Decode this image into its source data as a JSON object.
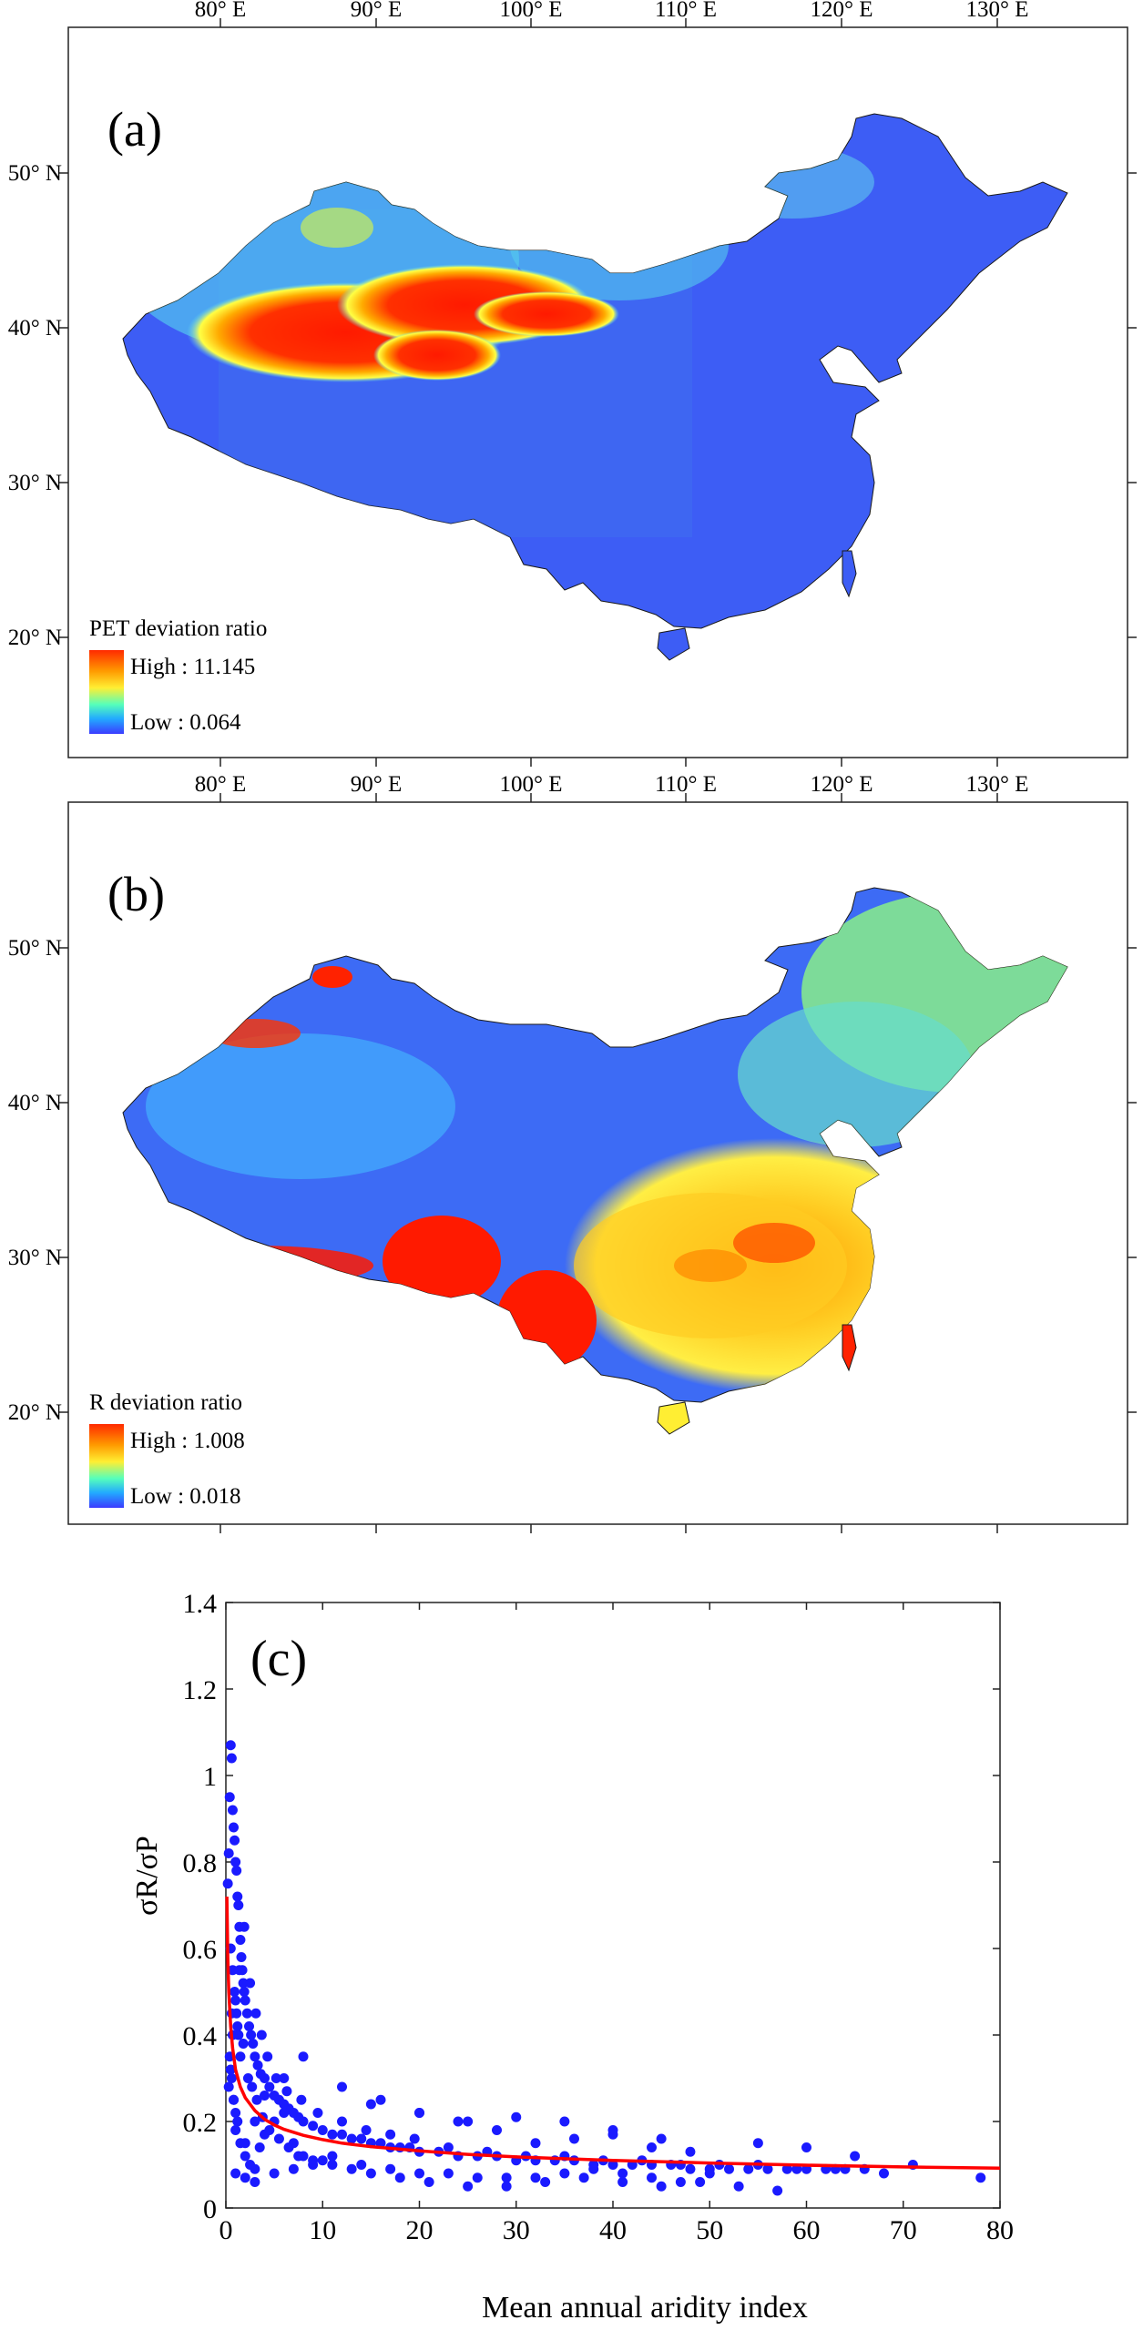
{
  "panels": {
    "a": {
      "label": "(a)",
      "lon_ticks": [
        "80° E",
        "90° E",
        "100° E",
        "110° E",
        "120° E",
        "130° E"
      ],
      "lat_ticks": [
        "50° N",
        "40° N",
        "30° N",
        "20° N"
      ],
      "legend": {
        "title": "PET deviation ratio",
        "high": "High : 11.145",
        "low": "Low : 0.064"
      },
      "colors": {
        "low": "#3b5cff",
        "mid": "#ffee33",
        "high": "#ff1a00"
      }
    },
    "b": {
      "label": "(b)",
      "lon_ticks": [
        "80° E",
        "90° E",
        "100° E",
        "110° E",
        "120° E",
        "130° E"
      ],
      "lat_ticks": [
        "50° N",
        "40° N",
        "30° N",
        "20° N"
      ],
      "legend": {
        "title": "R deviation ratio",
        "high": "High : 1.008",
        "low": "Low : 0.018"
      },
      "colors": {
        "low": "#3b5cff",
        "mid": "#ffee33",
        "high": "#ff1a00"
      }
    }
  },
  "chart_data": {
    "type": "scatter",
    "label": "(c)",
    "xlabel": "Mean annual aridity index",
    "ylabel": "σR/σP",
    "xlim": [
      0,
      80
    ],
    "ylim": [
      0,
      1.4
    ],
    "xticks": [
      0,
      10,
      20,
      30,
      40,
      50,
      60,
      70,
      80
    ],
    "yticks": [
      0,
      0.2,
      0.4,
      0.6,
      0.8,
      1,
      1.2,
      1.4
    ],
    "point_color": "#1a1aff",
    "curve_color": "#ff0000",
    "series": [
      {
        "kind": "points",
        "x": [
          0.2,
          0.3,
          0.4,
          0.5,
          0.6,
          0.7,
          0.8,
          0.9,
          1.0,
          1.1,
          1.2,
          1.3,
          1.4,
          1.5,
          1.6,
          1.7,
          1.8,
          1.9,
          2.0,
          2.2,
          2.4,
          2.6,
          2.8,
          3.0,
          3.3,
          3.6,
          4.0,
          4.5,
          5.0,
          5.5,
          6.0,
          6.5,
          7.0,
          7.5,
          8.0,
          9.0,
          10.0,
          11.0,
          12.0,
          13.0,
          14.0,
          15.0,
          16.0,
          17.0,
          18.0,
          19.0,
          20.0,
          22.0,
          24.0,
          26.0,
          28.0,
          30.0,
          32.0,
          34.0,
          36.0,
          38.0,
          40.0,
          42.0,
          44.0,
          46.0,
          48.0,
          50.0,
          52.0,
          54.0,
          56.0,
          58.0,
          60.0,
          62.0,
          64.0,
          66.0,
          68.0,
          71.0,
          78.0,
          0.5,
          0.7,
          0.9,
          1.1,
          1.3,
          1.5,
          0.6,
          0.8,
          1.0,
          1.2,
          0.4,
          0.6,
          0.8,
          1.0,
          1.5,
          2.0,
          2.5,
          3.0,
          3.5,
          4.0,
          5.0,
          6.0,
          7.0,
          8.0,
          10.0,
          1.2,
          1.8,
          2.3,
          2.7,
          3.2,
          3.8,
          4.5,
          5.5,
          6.5,
          7.5,
          9.0,
          11.0,
          13.0,
          15.0,
          18.0,
          21.0,
          25.0,
          29.0,
          33.0,
          37.0,
          41.0,
          45.0,
          49.0,
          53.0,
          57.0,
          0.3,
          0.5,
          0.7,
          1.0,
          1.4,
          1.9,
          2.5,
          3.1,
          3.7,
          4.3,
          5.2,
          6.3,
          7.8,
          9.5,
          12.0,
          14.5,
          17.0,
          19.5,
          23.0,
          27.0,
          31.0,
          35.0,
          39.0,
          43.0,
          47.0,
          51.0,
          55.0,
          59.0,
          63.0,
          2.0,
          3.0,
          4.0,
          6.0,
          8.0,
          12.0,
          16.0,
          20.0,
          24.0,
          28.0,
          32.0,
          36.0,
          40.0,
          44.0,
          48.0,
          1.0,
          2.0,
          3.0,
          5.0,
          7.0,
          9.0,
          11.0,
          14.0,
          17.0,
          20.0,
          23.0,
          26.0,
          29.0,
          32.0,
          35.0,
          38.0,
          41.0,
          44.0,
          47.0,
          50.0,
          15.0,
          20.0,
          25.0,
          30.0,
          35.0,
          40.0,
          45.0,
          55.0,
          60.0,
          65.0
        ],
        "y": [
          0.75,
          0.82,
          0.95,
          1.07,
          1.04,
          0.92,
          0.88,
          0.85,
          0.8,
          0.78,
          0.72,
          0.7,
          0.65,
          0.62,
          0.58,
          0.55,
          0.52,
          0.5,
          0.48,
          0.45,
          0.42,
          0.4,
          0.38,
          0.35,
          0.33,
          0.31,
          0.3,
          0.28,
          0.26,
          0.25,
          0.24,
          0.23,
          0.22,
          0.21,
          0.2,
          0.19,
          0.18,
          0.17,
          0.17,
          0.16,
          0.16,
          0.15,
          0.15,
          0.14,
          0.14,
          0.14,
          0.13,
          0.13,
          0.12,
          0.12,
          0.12,
          0.11,
          0.11,
          0.11,
          0.11,
          0.1,
          0.1,
          0.1,
          0.1,
          0.1,
          0.09,
          0.09,
          0.09,
          0.09,
          0.09,
          0.09,
          0.09,
          0.09,
          0.09,
          0.09,
          0.08,
          0.1,
          0.07,
          0.6,
          0.55,
          0.5,
          0.45,
          0.4,
          0.35,
          0.3,
          0.25,
          0.22,
          0.2,
          0.35,
          0.45,
          0.25,
          0.18,
          0.15,
          0.12,
          0.1,
          0.09,
          0.14,
          0.17,
          0.2,
          0.22,
          0.15,
          0.12,
          0.11,
          0.42,
          0.38,
          0.3,
          0.28,
          0.25,
          0.21,
          0.18,
          0.16,
          0.14,
          0.12,
          0.11,
          0.1,
          0.09,
          0.08,
          0.07,
          0.06,
          0.05,
          0.05,
          0.06,
          0.07,
          0.06,
          0.05,
          0.06,
          0.05,
          0.04,
          0.28,
          0.32,
          0.4,
          0.48,
          0.55,
          0.65,
          0.52,
          0.45,
          0.4,
          0.35,
          0.3,
          0.27,
          0.25,
          0.22,
          0.2,
          0.18,
          0.17,
          0.16,
          0.14,
          0.13,
          0.12,
          0.12,
          0.11,
          0.11,
          0.1,
          0.1,
          0.1,
          0.09,
          0.09,
          0.15,
          0.2,
          0.26,
          0.3,
          0.35,
          0.28,
          0.25,
          0.22,
          0.2,
          0.18,
          0.15,
          0.16,
          0.17,
          0.14,
          0.13,
          0.08,
          0.07,
          0.06,
          0.08,
          0.09,
          0.1,
          0.12,
          0.1,
          0.09,
          0.08,
          0.08,
          0.07,
          0.07,
          0.07,
          0.08,
          0.09,
          0.08,
          0.07,
          0.06,
          0.08,
          0.24,
          0.22,
          0.2,
          0.21,
          0.2,
          0.18,
          0.16,
          0.15,
          0.14,
          0.12
        ]
      },
      {
        "kind": "curve",
        "x": [
          0.1,
          0.2,
          0.3,
          0.5,
          0.7,
          1.0,
          1.5,
          2.0,
          2.5,
          3.0,
          4.0,
          5.0,
          6.0,
          8.0,
          10.0,
          12.0,
          15.0,
          20.0,
          25.0,
          30.0,
          40.0,
          50.0,
          60.0,
          70.0,
          80.0
        ],
        "y": [
          0.72,
          0.58,
          0.5,
          0.42,
          0.37,
          0.32,
          0.28,
          0.255,
          0.24,
          0.225,
          0.205,
          0.192,
          0.182,
          0.168,
          0.158,
          0.15,
          0.142,
          0.132,
          0.124,
          0.118,
          0.11,
          0.104,
          0.099,
          0.095,
          0.092
        ]
      }
    ]
  }
}
